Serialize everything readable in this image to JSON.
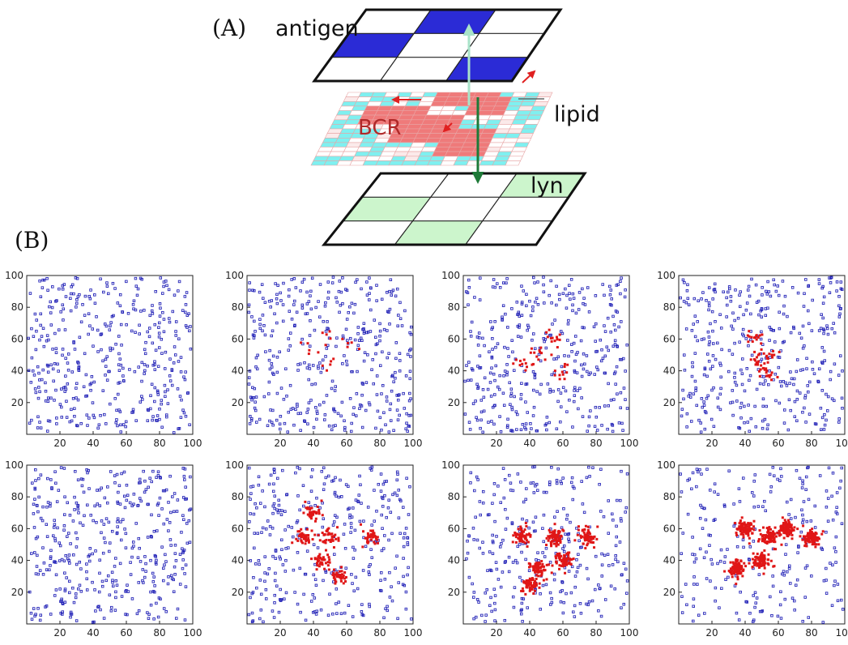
{
  "panel_labels": {
    "a": "(A)",
    "b": "(B)"
  },
  "diagram": {
    "layers": {
      "antigen": "antigen",
      "bcr": "BCR",
      "lipid": "lipid",
      "lyn": "lyn"
    },
    "antigen_filled": [
      [
        0,
        1
      ],
      [
        1,
        0
      ],
      [
        2,
        2
      ]
    ],
    "lyn_filled": [
      [
        0,
        2
      ],
      [
        1,
        0
      ],
      [
        2,
        1
      ]
    ],
    "colors": {
      "antigen": "#2b2bd6",
      "lyn": "#ccf5cc",
      "bcr": "#ef7a7a",
      "lipid": "#7ff0f0",
      "arrow_green": "#1e7a38",
      "arrow_faint": "#a9e3c9",
      "arrow_red": "#e02020"
    }
  },
  "chart_data": {
    "type": "scatter",
    "rows": 2,
    "cols": 4,
    "xlim": [
      0,
      100
    ],
    "ylim": [
      0,
      100
    ],
    "xticks": [
      "20",
      "40",
      "60",
      "80",
      "100"
    ],
    "yticks": [
      "20",
      "40",
      "60",
      "80",
      "100"
    ],
    "series_colors": {
      "free": "#2525b8",
      "clustered": "#e01616"
    },
    "panels": [
      {
        "row": 0,
        "col": 0,
        "free_count": 400,
        "clustered_count": 0,
        "cluster_centers": []
      },
      {
        "row": 0,
        "col": 1,
        "free_count": 390,
        "clustered_count": 20,
        "cluster_centers": [
          [
            50,
            45
          ],
          [
            60,
            55
          ],
          [
            40,
            55
          ],
          [
            48,
            60
          ]
        ]
      },
      {
        "row": 0,
        "col": 2,
        "free_count": 380,
        "clustered_count": 45,
        "cluster_centers": [
          [
            55,
            60
          ],
          [
            45,
            50
          ],
          [
            60,
            40
          ],
          [
            35,
            45
          ]
        ]
      },
      {
        "row": 0,
        "col": 3,
        "free_count": 370,
        "clustered_count": 60,
        "cluster_centers": [
          [
            55,
            50
          ],
          [
            45,
            60
          ],
          [
            52,
            38
          ],
          [
            48,
            45
          ]
        ]
      },
      {
        "row": 1,
        "col": 0,
        "free_count": 400,
        "clustered_count": 0,
        "cluster_centers": []
      },
      {
        "row": 1,
        "col": 1,
        "free_count": 330,
        "clustered_count": 230,
        "cluster_centers": [
          [
            50,
            55
          ],
          [
            45,
            40
          ],
          [
            35,
            55
          ],
          [
            75,
            55
          ],
          [
            40,
            70
          ],
          [
            55,
            30
          ]
        ]
      },
      {
        "row": 1,
        "col": 2,
        "free_count": 290,
        "clustered_count": 380,
        "cluster_centers": [
          [
            55,
            55
          ],
          [
            35,
            55
          ],
          [
            60,
            40
          ],
          [
            45,
            35
          ],
          [
            75,
            55
          ],
          [
            40,
            25
          ]
        ]
      },
      {
        "row": 1,
        "col": 3,
        "free_count": 230,
        "clustered_count": 520,
        "cluster_centers": [
          [
            55,
            55
          ],
          [
            40,
            60
          ],
          [
            65,
            60
          ],
          [
            50,
            40
          ],
          [
            35,
            35
          ],
          [
            80,
            55
          ]
        ]
      }
    ]
  }
}
